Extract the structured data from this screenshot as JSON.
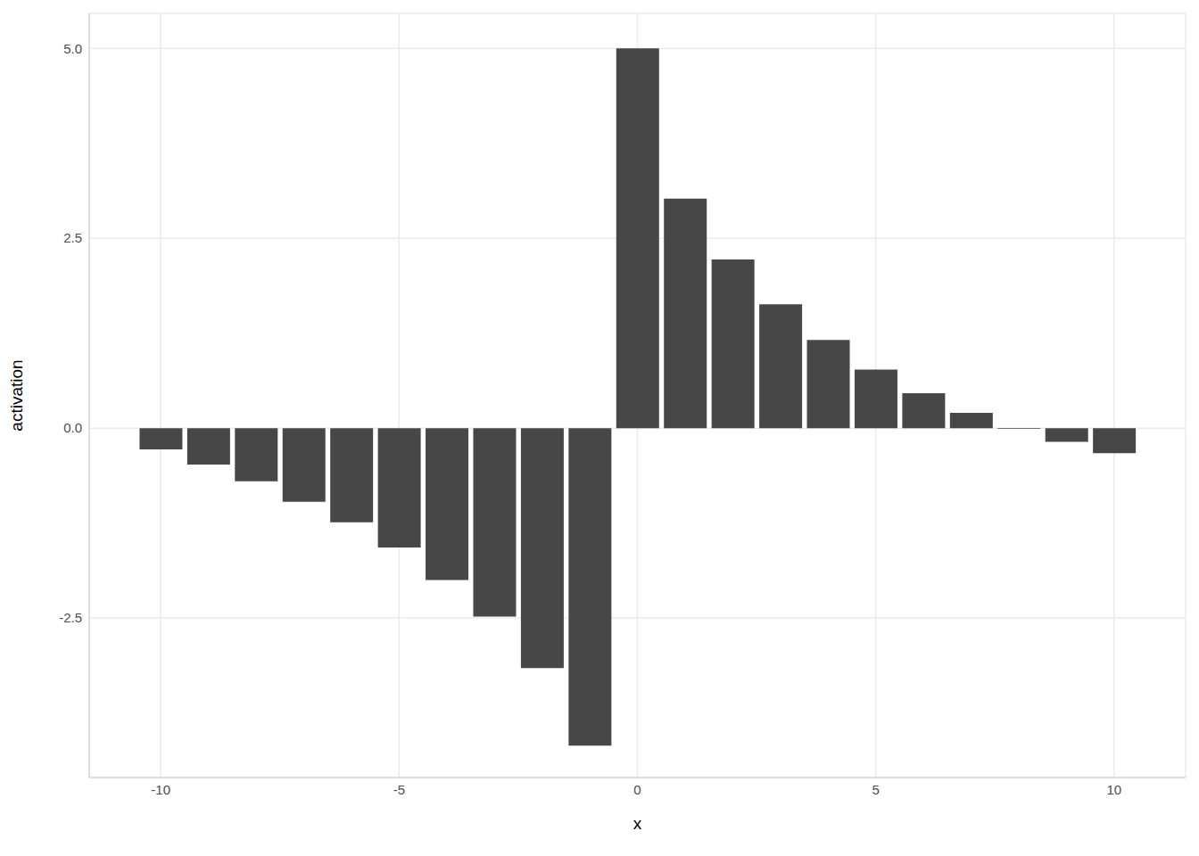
{
  "chart_data": {
    "type": "bar",
    "x_label": "x",
    "y_label": "activation",
    "x": [
      -10,
      -9,
      -8,
      -7,
      -6,
      -5,
      -4,
      -3,
      -2,
      -1,
      0,
      1,
      2,
      3,
      4,
      5,
      6,
      7,
      8,
      9,
      10
    ],
    "values": [
      -0.28,
      -0.48,
      -0.7,
      -0.97,
      -1.24,
      -1.57,
      -2.0,
      -2.48,
      -3.16,
      -4.18,
      5.0,
      3.02,
      2.22,
      1.63,
      1.16,
      0.77,
      0.46,
      0.2,
      -0.01,
      -0.18,
      -0.33
    ],
    "color": "#474747",
    "xlim": [
      -11.5,
      11.5
    ],
    "xticks": [
      -10,
      -5,
      0,
      5,
      10
    ],
    "ylim": [
      -4.6,
      5.46
    ],
    "yticks": [
      {
        "value": -2.5,
        "label": "-2.5"
      },
      {
        "value": 0,
        "label": "0.0"
      },
      {
        "value": 2.5,
        "label": "2.5"
      },
      {
        "value": 5,
        "label": "5.0"
      }
    ],
    "grid": true
  }
}
